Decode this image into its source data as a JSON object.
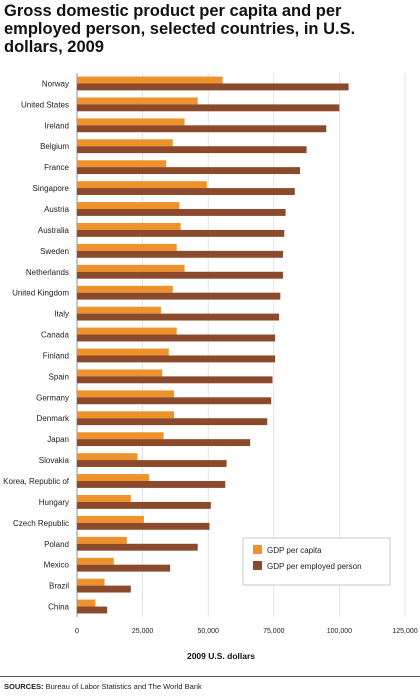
{
  "chart_data": {
    "type": "bar",
    "orientation": "horizontal",
    "title": "Gross domestic product per capita and per employed person, selected countries, in U.S. dollars, 2009",
    "xlabel": "2009 U.S. dollars",
    "ylabel": "",
    "xlim": [
      0,
      125000
    ],
    "xticks": [
      0,
      25000,
      50000,
      75000,
      100000,
      125000
    ],
    "xtick_labels": [
      "0",
      "25,000",
      "50,000",
      "75,000",
      "100,000",
      "125,000"
    ],
    "grid": true,
    "legend_position": "bottom-right",
    "categories": [
      "Norway",
      "United States",
      "Ireland",
      "Belgium",
      "France",
      "Singapore",
      "Austria",
      "Australia",
      "Sweden",
      "Netherlands",
      "United Kingdom",
      "Italy",
      "Canada",
      "Finland",
      "Spain",
      "Germany",
      "Denmark",
      "Japan",
      "Slovakia",
      "Korea, Republic of",
      "Hungary",
      "Czech Republic",
      "Poland",
      "Mexico",
      "Brazil",
      "China"
    ],
    "series": [
      {
        "name": "GDP per capita",
        "color": "#f0922b",
        "values": [
          55500,
          46000,
          41000,
          36500,
          34000,
          49500,
          39000,
          39500,
          38000,
          41000,
          36500,
          32000,
          38000,
          35000,
          32500,
          37000,
          37000,
          33000,
          23000,
          27500,
          20500,
          25500,
          19000,
          14000,
          10500,
          7000
        ]
      },
      {
        "name": "GDP per employed person",
        "color": "#8b4a2b",
        "values": [
          103500,
          100000,
          95000,
          87500,
          85000,
          83000,
          79500,
          79000,
          78500,
          78500,
          77500,
          77000,
          75500,
          75500,
          74500,
          74000,
          72500,
          66000,
          57000,
          56500,
          51000,
          50500,
          46000,
          35500,
          20500,
          11500
        ]
      }
    ]
  },
  "title_text": "Gross domestic product per capita and per employed person, selected countries, in U.S. dollars, 2009",
  "sources": {
    "label": "SOURCES:",
    "text": " Bureau of Labor Statistics and The World Bank"
  }
}
